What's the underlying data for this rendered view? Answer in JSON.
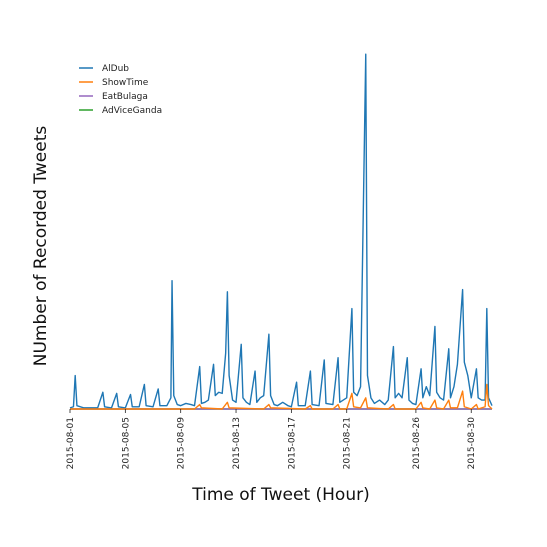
{
  "chart_data": {
    "type": "line",
    "xlabel": "Time of Tweet (Hour)",
    "ylabel": "NUmber of Recorded Tweets",
    "x_range": [
      "2015-08-01T00:00",
      "2015-08-31T12:00"
    ],
    "x_ticks": [
      "2015-08-01",
      "2015-08-05",
      "2015-08-09",
      "2015-08-13",
      "2015-08-17",
      "2015-08-21",
      "2015-08-26",
      "2015-08-30"
    ],
    "y_ticks_shown": false,
    "grid": false,
    "legend": {
      "placement": "top-left"
    },
    "series": [
      {
        "name": "AlDub",
        "color": "#1f77b4",
        "points": [
          [
            "2015-08-01T00:00",
            1
          ],
          [
            "2015-08-01T06:00",
            2
          ],
          [
            "2015-08-01T09:00",
            30
          ],
          [
            "2015-08-01T12:00",
            3
          ],
          [
            "2015-08-02T00:00",
            1
          ],
          [
            "2015-08-02T12:00",
            1
          ],
          [
            "2015-08-03T00:00",
            1
          ],
          [
            "2015-08-03T09:00",
            15
          ],
          [
            "2015-08-03T12:00",
            2
          ],
          [
            "2015-08-04T00:00",
            1
          ],
          [
            "2015-08-04T09:00",
            14
          ],
          [
            "2015-08-04T12:00",
            2
          ],
          [
            "2015-08-05T00:00",
            1
          ],
          [
            "2015-08-05T09:00",
            13
          ],
          [
            "2015-08-05T12:00",
            2
          ],
          [
            "2015-08-06T00:00",
            2
          ],
          [
            "2015-08-06T09:00",
            22
          ],
          [
            "2015-08-06T12:00",
            3
          ],
          [
            "2015-08-07T00:00",
            2
          ],
          [
            "2015-08-07T09:00",
            18
          ],
          [
            "2015-08-07T12:00",
            3
          ],
          [
            "2015-08-08T00:00",
            3
          ],
          [
            "2015-08-08T07:00",
            10
          ],
          [
            "2015-08-08T09:00",
            115
          ],
          [
            "2015-08-08T12:00",
            12
          ],
          [
            "2015-08-08T18:00",
            4
          ],
          [
            "2015-08-09T00:00",
            3
          ],
          [
            "2015-08-09T09:00",
            5
          ],
          [
            "2015-08-09T18:00",
            4
          ],
          [
            "2015-08-10T00:00",
            3
          ],
          [
            "2015-08-10T09:00",
            38
          ],
          [
            "2015-08-10T12:00",
            5
          ],
          [
            "2015-08-10T18:00",
            6
          ],
          [
            "2015-08-11T00:00",
            8
          ],
          [
            "2015-08-11T09:00",
            40
          ],
          [
            "2015-08-11T12:00",
            12
          ],
          [
            "2015-08-11T18:00",
            15
          ],
          [
            "2015-08-12T00:00",
            14
          ],
          [
            "2015-08-12T06:00",
            50
          ],
          [
            "2015-08-12T09:00",
            105
          ],
          [
            "2015-08-12T12:00",
            30
          ],
          [
            "2015-08-12T18:00",
            8
          ],
          [
            "2015-08-13T00:00",
            6
          ],
          [
            "2015-08-13T09:00",
            58
          ],
          [
            "2015-08-13T12:00",
            10
          ],
          [
            "2015-08-13T18:00",
            6
          ],
          [
            "2015-08-14T00:00",
            4
          ],
          [
            "2015-08-14T09:00",
            34
          ],
          [
            "2015-08-14T12:00",
            6
          ],
          [
            "2015-08-14T18:00",
            10
          ],
          [
            "2015-08-15T00:00",
            12
          ],
          [
            "2015-08-15T09:00",
            67
          ],
          [
            "2015-08-15T12:00",
            12
          ],
          [
            "2015-08-15T18:00",
            4
          ],
          [
            "2015-08-16T00:00",
            3
          ],
          [
            "2015-08-16T09:00",
            6
          ],
          [
            "2015-08-16T18:00",
            3
          ],
          [
            "2015-08-17T00:00",
            2
          ],
          [
            "2015-08-17T09:00",
            24
          ],
          [
            "2015-08-17T12:00",
            3
          ],
          [
            "2015-08-18T00:00",
            3
          ],
          [
            "2015-08-18T09:00",
            34
          ],
          [
            "2015-08-18T12:00",
            4
          ],
          [
            "2015-08-19T00:00",
            3
          ],
          [
            "2015-08-19T09:00",
            44
          ],
          [
            "2015-08-19T12:00",
            5
          ],
          [
            "2015-08-20T00:00",
            4
          ],
          [
            "2015-08-20T09:00",
            46
          ],
          [
            "2015-08-20T12:00",
            6
          ],
          [
            "2015-08-20T18:00",
            8
          ],
          [
            "2015-08-21T00:00",
            10
          ],
          [
            "2015-08-21T09:00",
            90
          ],
          [
            "2015-08-21T12:00",
            15
          ],
          [
            "2015-08-21T18:00",
            12
          ],
          [
            "2015-08-22T00:00",
            20
          ],
          [
            "2015-08-22T09:00",
            318
          ],
          [
            "2015-08-22T12:00",
            30
          ],
          [
            "2015-08-22T18:00",
            10
          ],
          [
            "2015-08-23T00:00",
            5
          ],
          [
            "2015-08-23T09:00",
            8
          ],
          [
            "2015-08-23T18:00",
            4
          ],
          [
            "2015-08-24T00:00",
            8
          ],
          [
            "2015-08-24T09:00",
            56
          ],
          [
            "2015-08-24T12:00",
            10
          ],
          [
            "2015-08-24T18:00",
            14
          ],
          [
            "2015-08-25T00:00",
            10
          ],
          [
            "2015-08-25T09:00",
            46
          ],
          [
            "2015-08-25T12:00",
            8
          ],
          [
            "2015-08-25T18:00",
            5
          ],
          [
            "2015-08-26T00:00",
            4
          ],
          [
            "2015-08-26T09:00",
            36
          ],
          [
            "2015-08-26T12:00",
            10
          ],
          [
            "2015-08-26T18:00",
            20
          ],
          [
            "2015-08-27T00:00",
            12
          ],
          [
            "2015-08-27T09:00",
            74
          ],
          [
            "2015-08-27T12:00",
            15
          ],
          [
            "2015-08-27T18:00",
            10
          ],
          [
            "2015-08-28T00:00",
            8
          ],
          [
            "2015-08-28T09:00",
            54
          ],
          [
            "2015-08-28T12:00",
            10
          ],
          [
            "2015-08-28T18:00",
            20
          ],
          [
            "2015-08-29T00:00",
            40
          ],
          [
            "2015-08-29T09:00",
            107
          ],
          [
            "2015-08-29T12:00",
            42
          ],
          [
            "2015-08-29T18:00",
            30
          ],
          [
            "2015-08-30T00:00",
            10
          ],
          [
            "2015-08-30T09:00",
            36
          ],
          [
            "2015-08-30T12:00",
            10
          ],
          [
            "2015-08-30T18:00",
            8
          ],
          [
            "2015-08-31T00:00",
            8
          ],
          [
            "2015-08-31T03:00",
            90
          ],
          [
            "2015-08-31T06:00",
            10
          ],
          [
            "2015-08-31T12:00",
            3
          ]
        ]
      },
      {
        "name": "ShowTime",
        "color": "#ff7f0e",
        "points": [
          [
            "2015-08-01T00:00",
            0
          ],
          [
            "2015-08-10T00:00",
            0
          ],
          [
            "2015-08-10T09:00",
            4
          ],
          [
            "2015-08-10T12:00",
            1
          ],
          [
            "2015-08-12T00:00",
            0
          ],
          [
            "2015-08-12T09:00",
            6
          ],
          [
            "2015-08-12T12:00",
            1
          ],
          [
            "2015-08-15T00:00",
            0
          ],
          [
            "2015-08-15T09:00",
            4
          ],
          [
            "2015-08-15T12:00",
            1
          ],
          [
            "2015-08-18T00:00",
            0
          ],
          [
            "2015-08-18T09:00",
            3
          ],
          [
            "2015-08-18T12:00",
            0
          ],
          [
            "2015-08-20T00:00",
            0
          ],
          [
            "2015-08-20T09:00",
            4
          ],
          [
            "2015-08-20T12:00",
            0
          ],
          [
            "2015-08-21T00:00",
            0
          ],
          [
            "2015-08-21T09:00",
            14
          ],
          [
            "2015-08-21T12:00",
            2
          ],
          [
            "2015-08-22T00:00",
            1
          ],
          [
            "2015-08-22T09:00",
            10
          ],
          [
            "2015-08-22T12:00",
            1
          ],
          [
            "2015-08-24T00:00",
            0
          ],
          [
            "2015-08-24T09:00",
            4
          ],
          [
            "2015-08-24T12:00",
            0
          ],
          [
            "2015-08-26T00:00",
            0
          ],
          [
            "2015-08-26T09:00",
            6
          ],
          [
            "2015-08-26T12:00",
            1
          ],
          [
            "2015-08-27T00:00",
            0
          ],
          [
            "2015-08-27T09:00",
            8
          ],
          [
            "2015-08-27T12:00",
            1
          ],
          [
            "2015-08-28T00:00",
            0
          ],
          [
            "2015-08-28T09:00",
            8
          ],
          [
            "2015-08-28T12:00",
            1
          ],
          [
            "2015-08-29T00:00",
            1
          ],
          [
            "2015-08-29T09:00",
            16
          ],
          [
            "2015-08-29T12:00",
            2
          ],
          [
            "2015-08-30T00:00",
            0
          ],
          [
            "2015-08-30T09:00",
            4
          ],
          [
            "2015-08-30T12:00",
            0
          ],
          [
            "2015-08-31T00:00",
            2
          ],
          [
            "2015-08-31T03:00",
            22
          ],
          [
            "2015-08-31T06:00",
            3
          ],
          [
            "2015-08-31T12:00",
            0
          ]
        ]
      },
      {
        "name": "EatBulaga",
        "color": "#9467bd",
        "points": [
          [
            "2015-08-01T00:00",
            0
          ],
          [
            "2015-08-31T12:00",
            0
          ]
        ]
      },
      {
        "name": "AdViceGanda",
        "color": "#2ca02c",
        "points": [
          [
            "2015-08-01T00:00",
            0
          ],
          [
            "2015-08-31T12:00",
            0
          ]
        ]
      }
    ]
  }
}
